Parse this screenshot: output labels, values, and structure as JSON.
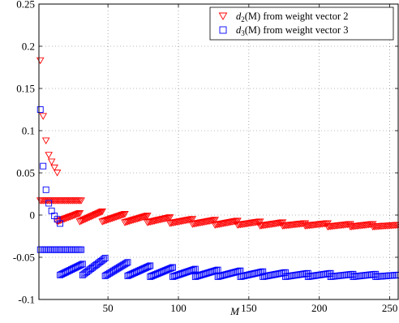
{
  "chart_data": {
    "type": "scatter",
    "xlabel": "M",
    "ylabel": "",
    "title": "",
    "xlim": [
      1,
      256
    ],
    "ylim": [
      -0.1,
      0.25
    ],
    "grid": true,
    "legend_position": "top-right",
    "x_ticks": [
      "50",
      "100",
      "150",
      "200",
      "250"
    ],
    "y_ticks": [
      "-0.1",
      "-0.05",
      "0",
      "0.05",
      "0.1",
      "0.15",
      "0.2",
      "0.25"
    ],
    "colors": {
      "series_2": "#ff0000",
      "series_3": "#0000ff"
    },
    "series": [
      {
        "name": "d2(M) from weight vector 2",
        "legend_math": "d",
        "legend_sub": "2",
        "legend_rest": "(M) from weight vector 2",
        "marker": "triangle-down",
        "color": "#ff0000",
        "description_shape": "sawtooth",
        "peaks": [
          {
            "x": 2,
            "y": 0.183
          },
          {
            "x": 4,
            "y": 0.117
          },
          {
            "x": 6,
            "y": 0.088
          },
          {
            "x": 8,
            "y": 0.071
          },
          {
            "x": 10,
            "y": 0.063
          },
          {
            "x": 12,
            "y": 0.056
          },
          {
            "x": 14,
            "y": 0.05
          }
        ],
        "plateau": {
          "x_start": 2,
          "x_end": 31,
          "y": 0.017
        },
        "segments": [
          {
            "x_start": 14,
            "x_end": 30,
            "y_start": -0.008,
            "y_end": 0.002
          },
          {
            "x_start": 30,
            "x_end": 46,
            "y_start": -0.008,
            "y_end": 0.004
          },
          {
            "x_start": 46,
            "x_end": 62,
            "y_start": -0.008,
            "y_end": 0.001
          },
          {
            "x_start": 62,
            "x_end": 78,
            "y_start": -0.009,
            "y_end": -0.001
          },
          {
            "x_start": 78,
            "x_end": 94,
            "y_start": -0.009,
            "y_end": -0.003
          },
          {
            "x_start": 94,
            "x_end": 110,
            "y_start": -0.01,
            "y_end": -0.005
          },
          {
            "x_start": 110,
            "x_end": 126,
            "y_start": -0.011,
            "y_end": -0.006
          },
          {
            "x_start": 126,
            "x_end": 142,
            "y_start": -0.012,
            "y_end": -0.007
          },
          {
            "x_start": 142,
            "x_end": 158,
            "y_start": -0.012,
            "y_end": -0.008
          },
          {
            "x_start": 158,
            "x_end": 174,
            "y_start": -0.013,
            "y_end": -0.009
          },
          {
            "x_start": 174,
            "x_end": 190,
            "y_start": -0.013,
            "y_end": -0.01
          },
          {
            "x_start": 190,
            "x_end": 206,
            "y_start": -0.013,
            "y_end": -0.01
          },
          {
            "x_start": 206,
            "x_end": 222,
            "y_start": -0.014,
            "y_end": -0.011
          },
          {
            "x_start": 222,
            "x_end": 238,
            "y_start": -0.014,
            "y_end": -0.011
          },
          {
            "x_start": 238,
            "x_end": 256,
            "y_start": -0.014,
            "y_end": -0.012
          }
        ]
      },
      {
        "name": "d3(M) from weight vector 3",
        "legend_math": "d",
        "legend_sub": "3",
        "legend_rest": "(M) from weight vector 3",
        "marker": "square",
        "color": "#0000ff",
        "description_shape": "sawtooth",
        "peaks": [
          {
            "x": 2,
            "y": 0.125
          },
          {
            "x": 4,
            "y": 0.058
          },
          {
            "x": 6,
            "y": 0.03
          },
          {
            "x": 8,
            "y": 0.014
          },
          {
            "x": 10,
            "y": 0.005
          },
          {
            "x": 12,
            "y": -0.001
          },
          {
            "x": 14,
            "y": -0.005
          },
          {
            "x": 16,
            "y": -0.01
          }
        ],
        "plateau": {
          "x_start": 2,
          "x_end": 31,
          "y": -0.041
        },
        "segments": [
          {
            "x_start": 16,
            "x_end": 32,
            "y_start": -0.071,
            "y_end": -0.058
          },
          {
            "x_start": 32,
            "x_end": 48,
            "y_start": -0.071,
            "y_end": -0.051
          },
          {
            "x_start": 48,
            "x_end": 64,
            "y_start": -0.072,
            "y_end": -0.056
          },
          {
            "x_start": 64,
            "x_end": 80,
            "y_start": -0.072,
            "y_end": -0.06
          },
          {
            "x_start": 80,
            "x_end": 96,
            "y_start": -0.073,
            "y_end": -0.062
          },
          {
            "x_start": 96,
            "x_end": 112,
            "y_start": -0.073,
            "y_end": -0.064
          },
          {
            "x_start": 112,
            "x_end": 128,
            "y_start": -0.073,
            "y_end": -0.065
          },
          {
            "x_start": 128,
            "x_end": 144,
            "y_start": -0.073,
            "y_end": -0.066
          },
          {
            "x_start": 144,
            "x_end": 160,
            "y_start": -0.073,
            "y_end": -0.067
          },
          {
            "x_start": 160,
            "x_end": 176,
            "y_start": -0.073,
            "y_end": -0.068
          },
          {
            "x_start": 176,
            "x_end": 192,
            "y_start": -0.073,
            "y_end": -0.069
          },
          {
            "x_start": 192,
            "x_end": 208,
            "y_start": -0.073,
            "y_end": -0.069
          },
          {
            "x_start": 208,
            "x_end": 224,
            "y_start": -0.073,
            "y_end": -0.07
          },
          {
            "x_start": 224,
            "x_end": 240,
            "y_start": -0.073,
            "y_end": -0.07
          },
          {
            "x_start": 240,
            "x_end": 256,
            "y_start": -0.073,
            "y_end": -0.071
          }
        ]
      }
    ]
  }
}
